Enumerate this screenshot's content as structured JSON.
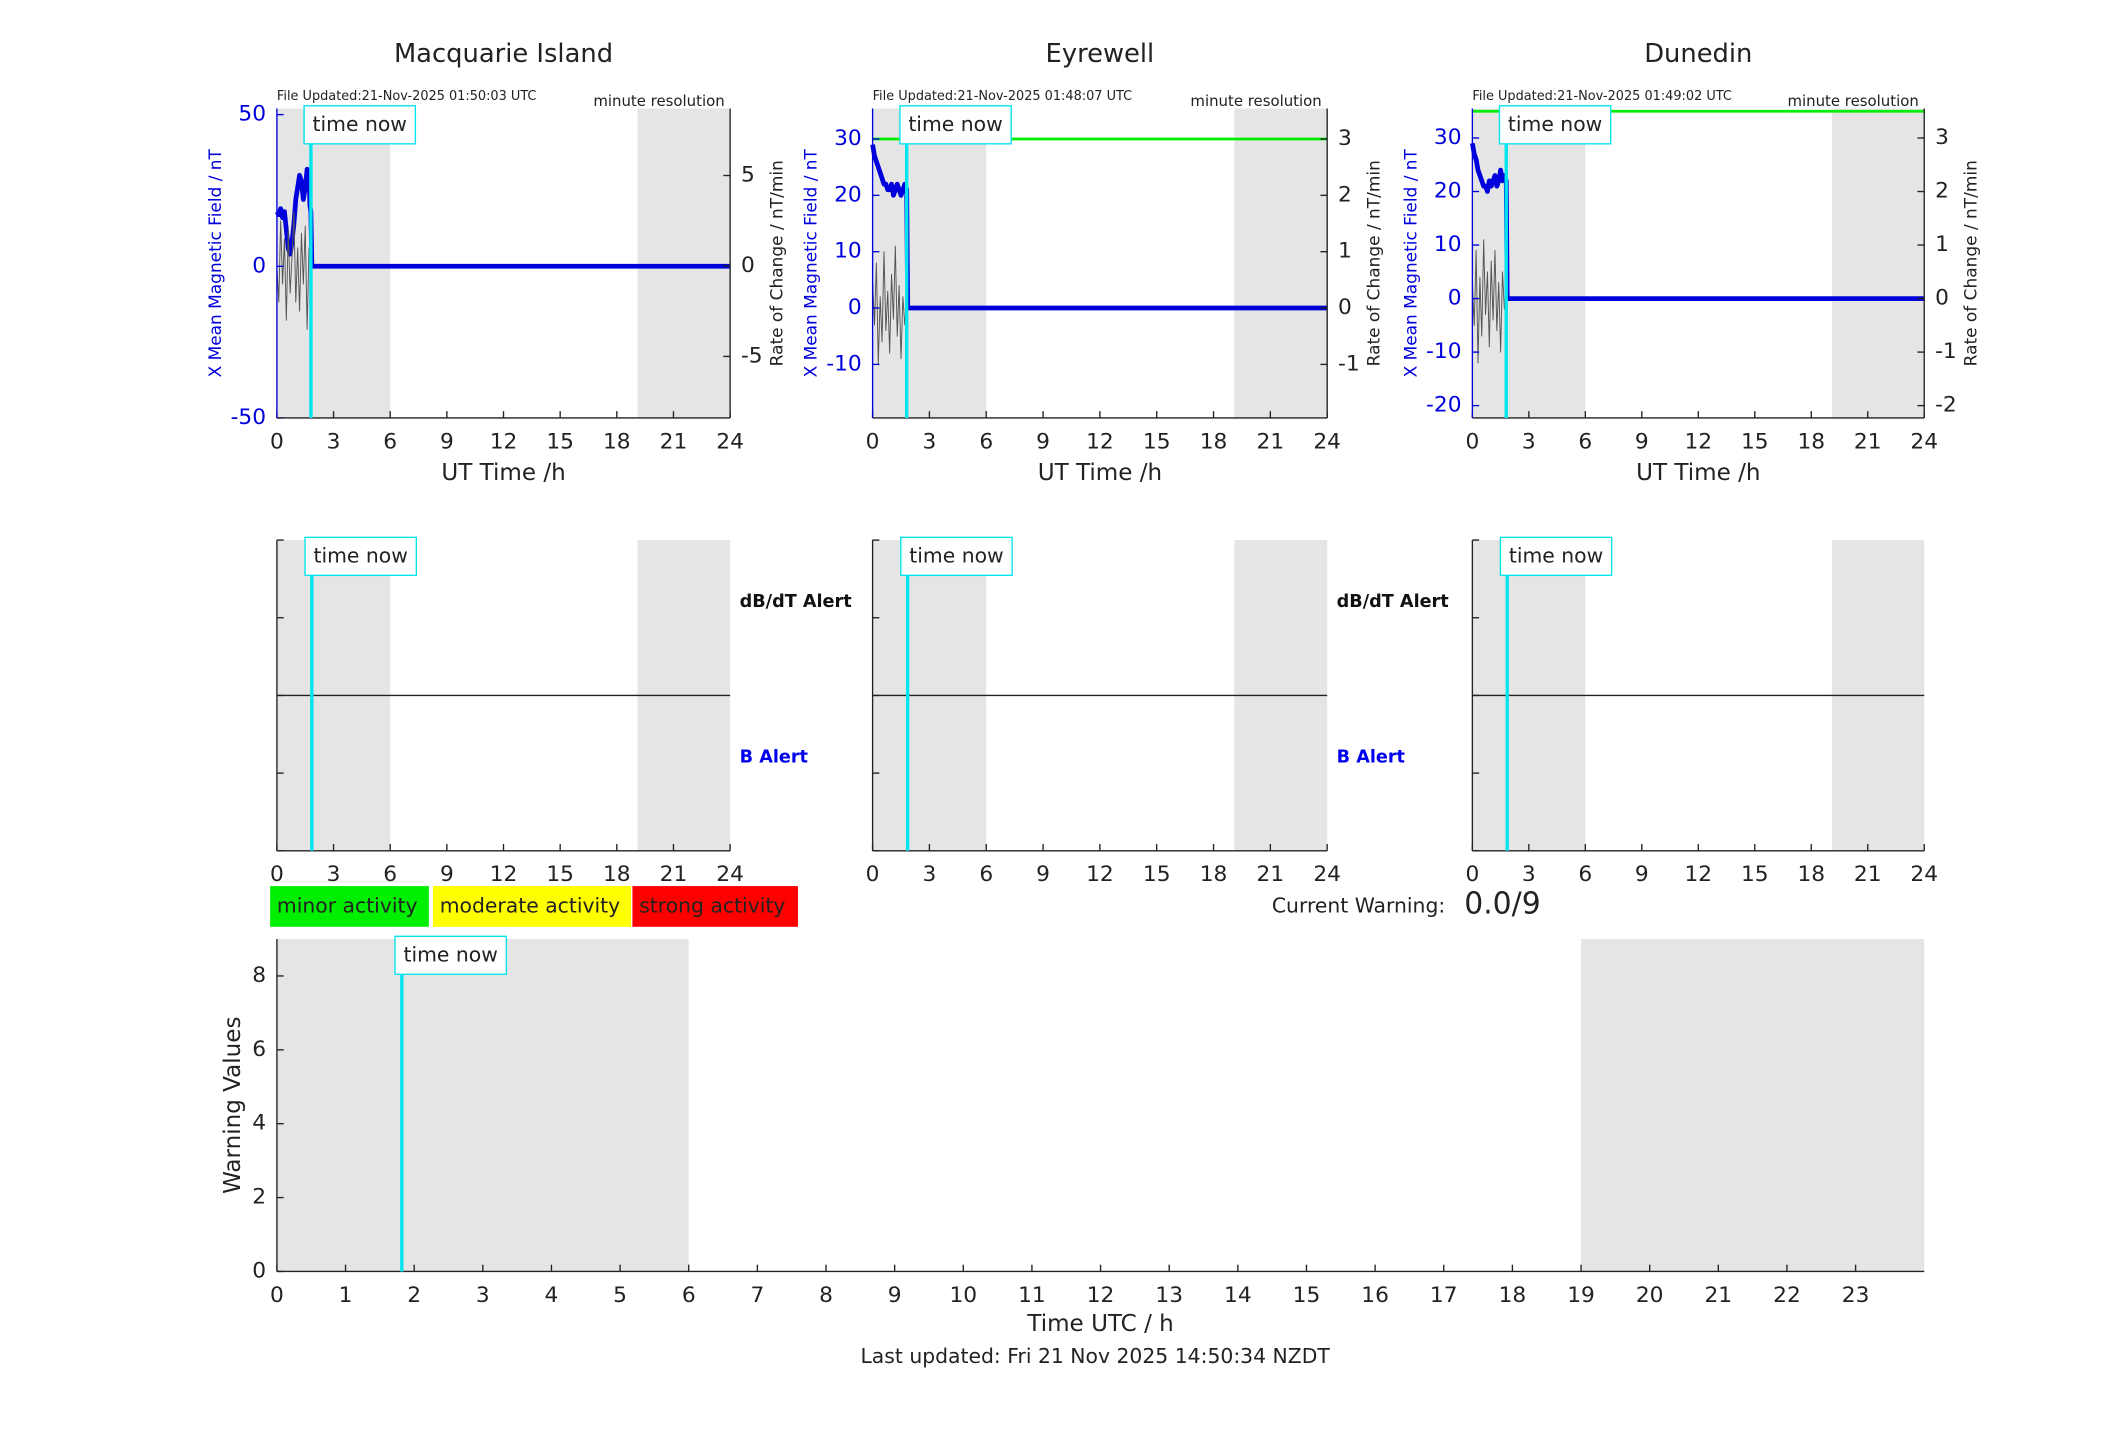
{
  "chart_data": [
    {
      "type": "line",
      "title": "Macquarie Island",
      "file_updated": "File Updated:21-Nov-2025 01:50:03 UTC",
      "resolution": "minute resolution",
      "ylabel": "X Mean Magnetic Field / nT",
      "y2label": "Rate of Change / nT/min",
      "xlabel": "UT Time /h",
      "xlim": [
        0,
        24
      ],
      "xticks": [
        0,
        3,
        6,
        9,
        12,
        15,
        18,
        21,
        24
      ],
      "ylim": [
        -50,
        52
      ],
      "yticks": [
        -50,
        0,
        50
      ],
      "y2lim": [
        -8.4,
        8.7
      ],
      "y2ticks": [
        -5,
        0,
        5
      ],
      "shaded": [
        [
          0,
          6
        ],
        [
          19.1,
          24
        ]
      ],
      "time_now": 1.8,
      "time_now_label": "time now",
      "series": [
        {
          "color": "#0000dd",
          "x": [
            0,
            0.1,
            0.2,
            0.3,
            0.4,
            0.5,
            0.6,
            0.7,
            0.8,
            0.9,
            1.0,
            1.1,
            1.2,
            1.3,
            1.4,
            1.5,
            1.6,
            1.7,
            1.75,
            1.8,
            1.85,
            24
          ],
          "values": [
            18,
            17,
            19,
            16,
            18,
            12,
            6,
            4,
            8,
            14,
            22,
            26,
            30,
            28,
            22,
            26,
            32,
            30,
            20,
            18,
            0,
            0
          ]
        },
        {
          "color": "#555555",
          "axis": "y2",
          "x": [
            0,
            0.1,
            0.2,
            0.3,
            0.4,
            0.5,
            0.6,
            0.7,
            0.8,
            0.9,
            1.0,
            1.1,
            1.2,
            1.3,
            1.4,
            1.5,
            1.6,
            1.7,
            1.8
          ],
          "values": [
            0,
            -2,
            2.5,
            -1,
            1.5,
            -3,
            2,
            -1.5,
            0.5,
            3,
            -2,
            1,
            -2.5,
            1.8,
            -1,
            2.2,
            -3.5,
            1,
            -0.5
          ]
        }
      ]
    },
    {
      "type": "line",
      "title": "Eyrewell",
      "file_updated": "File Updated:21-Nov-2025 01:48:07 UTC",
      "resolution": "minute resolution",
      "ylabel": "X Mean Magnetic Field / nT",
      "y2label": "Rate of Change / nT/min",
      "xlabel": "UT Time /h",
      "xlim": [
        0,
        24
      ],
      "xticks": [
        0,
        3,
        6,
        9,
        12,
        15,
        18,
        21,
        24
      ],
      "ylim": [
        -19.5,
        35.4
      ],
      "yticks": [
        -10,
        0,
        10,
        20,
        30
      ],
      "y2lim": [
        -1.95,
        3.54
      ],
      "y2ticks": [
        -1,
        0,
        1,
        2,
        3
      ],
      "shaded": [
        [
          0,
          6
        ],
        [
          19.1,
          24
        ]
      ],
      "time_now": 1.8,
      "time_now_label": "time now",
      "series": [
        {
          "color": "#00ee00",
          "x": [
            0,
            24
          ],
          "values": [
            30,
            30
          ]
        },
        {
          "color": "#0000dd",
          "x": [
            0,
            0.1,
            0.2,
            0.3,
            0.4,
            0.5,
            0.6,
            0.7,
            0.8,
            0.9,
            1.0,
            1.1,
            1.2,
            1.3,
            1.4,
            1.5,
            1.6,
            1.7,
            1.8,
            1.85,
            24
          ],
          "values": [
            29,
            27,
            26,
            25,
            24,
            23,
            22,
            22,
            21,
            21,
            22,
            20,
            21,
            22,
            21,
            20,
            21,
            22,
            21,
            0,
            0
          ]
        },
        {
          "color": "#555555",
          "axis": "y2",
          "x": [
            0,
            0.1,
            0.2,
            0.3,
            0.4,
            0.5,
            0.6,
            0.7,
            0.8,
            0.9,
            1.0,
            1.1,
            1.2,
            1.3,
            1.4,
            1.5,
            1.6,
            1.7,
            1.8
          ],
          "values": [
            0.5,
            -0.3,
            0.8,
            -1,
            0.2,
            -0.6,
            1,
            -0.4,
            0.3,
            -0.8,
            0.6,
            -0.2,
            1.1,
            -0.5,
            0.4,
            -0.9,
            0.2,
            -0.3,
            0.1
          ]
        }
      ]
    },
    {
      "type": "line",
      "title": "Dunedin",
      "file_updated": "File Updated:21-Nov-2025 01:49:02 UTC",
      "resolution": "minute resolution",
      "ylabel": "X Mean Magnetic Field / nT",
      "y2label": "Rate of Change / nT/min",
      "xlabel": "UT Time /h",
      "xlim": [
        0,
        24
      ],
      "xticks": [
        0,
        3,
        6,
        9,
        12,
        15,
        18,
        21,
        24
      ],
      "ylim": [
        -22.3,
        35.5
      ],
      "yticks": [
        -20,
        -10,
        0,
        10,
        20,
        30
      ],
      "y2lim": [
        -2.23,
        3.55
      ],
      "y2ticks": [
        -2,
        -1,
        0,
        1,
        2,
        3
      ],
      "shaded": [
        [
          0,
          6
        ],
        [
          19.1,
          24
        ]
      ],
      "time_now": 1.8,
      "time_now_label": "time now",
      "series": [
        {
          "color": "#00ee00",
          "x": [
            0,
            24
          ],
          "values": [
            35,
            35
          ]
        },
        {
          "color": "#0000dd",
          "x": [
            0,
            0.1,
            0.2,
            0.3,
            0.4,
            0.5,
            0.6,
            0.7,
            0.8,
            0.9,
            1.0,
            1.1,
            1.2,
            1.3,
            1.4,
            1.5,
            1.6,
            1.7,
            1.8,
            1.85,
            24
          ],
          "values": [
            29,
            27,
            26,
            24,
            23,
            22,
            21,
            21,
            20,
            22,
            21,
            22,
            23,
            21,
            22,
            24,
            22,
            23,
            22,
            0,
            0
          ]
        },
        {
          "color": "#555555",
          "axis": "y2",
          "x": [
            0,
            0.1,
            0.2,
            0.3,
            0.4,
            0.5,
            0.6,
            0.7,
            0.8,
            0.9,
            1.0,
            1.1,
            1.2,
            1.3,
            1.4,
            1.5,
            1.6,
            1.7,
            1.8
          ],
          "values": [
            0.3,
            -0.5,
            0.9,
            -1.2,
            0.4,
            -0.7,
            1.1,
            -0.3,
            0.5,
            -0.9,
            0.7,
            -0.4,
            0.9,
            -0.6,
            0.3,
            -1,
            0.5,
            -0.2,
            0.1
          ]
        }
      ]
    },
    {
      "type": "alert",
      "xlim": [
        0,
        24
      ],
      "xticks": [
        0,
        3,
        6,
        9,
        12,
        15,
        18,
        21,
        24
      ],
      "shaded": [
        [
          0,
          6
        ],
        [
          19.1,
          24
        ]
      ],
      "time_now": 1.85,
      "time_now_label": "time now",
      "alerts": [
        {
          "label": "dB/dT Alert",
          "color": "#111111"
        },
        {
          "label": "B Alert",
          "color": "#0000ee"
        }
      ]
    },
    {
      "type": "alert",
      "xlim": [
        0,
        24
      ],
      "xticks": [
        0,
        3,
        6,
        9,
        12,
        15,
        18,
        21,
        24
      ],
      "shaded": [
        [
          0,
          6
        ],
        [
          19.1,
          24
        ]
      ],
      "time_now": 1.85,
      "time_now_label": "time now",
      "alerts": [
        {
          "label": "dB/dT Alert",
          "color": "#111111"
        },
        {
          "label": "B Alert",
          "color": "#0000ee"
        }
      ]
    },
    {
      "type": "alert",
      "xlim": [
        0,
        24
      ],
      "xticks": [
        0,
        3,
        6,
        9,
        12,
        15,
        18,
        21,
        24
      ],
      "shaded": [
        [
          0,
          6
        ],
        [
          19.1,
          24
        ]
      ],
      "time_now": 1.85,
      "time_now_label": "time now"
    },
    {
      "type": "line",
      "xlabel": "Time UTC / h",
      "ylabel": "Warning Values",
      "xlim": [
        0,
        24
      ],
      "xticks": [
        0,
        1,
        2,
        3,
        4,
        5,
        6,
        7,
        8,
        9,
        10,
        11,
        12,
        13,
        14,
        15,
        16,
        17,
        18,
        19,
        20,
        21,
        22,
        23
      ],
      "ylim": [
        0,
        9
      ],
      "yticks": [
        0,
        2,
        4,
        6,
        8
      ],
      "shaded": [
        [
          0,
          6
        ],
        [
          19,
          24
        ]
      ],
      "time_now": 1.82,
      "time_now_label": "time now",
      "levels": [
        {
          "name": "minor activity",
          "color": "#00ee00"
        },
        {
          "name": "moderate activity",
          "color": "#ffff00"
        },
        {
          "name": "strong activity",
          "color": "#ff0000"
        }
      ],
      "current_warning_label": "Current Warning:",
      "current_warning": "0.0/9",
      "footer": "Last updated: Fri 21 Nov 2025 14:50:34 NZDT"
    }
  ]
}
